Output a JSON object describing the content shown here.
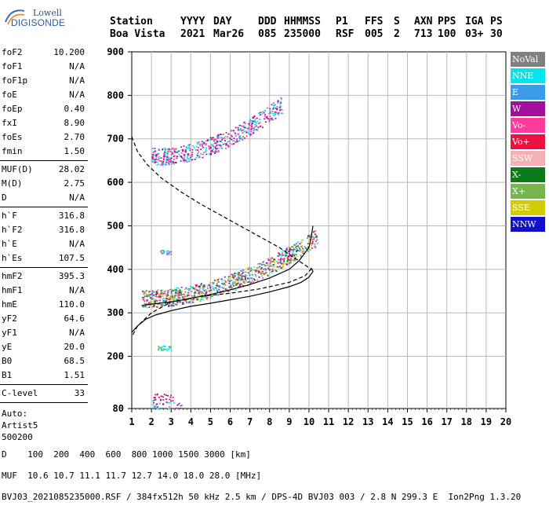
{
  "logo": {
    "line1": "Lowell",
    "line2": "DIGISONDE"
  },
  "header": {
    "row1": [
      "Station",
      "YYYY",
      "DAY",
      "DDD",
      "HHMMSS",
      "P1",
      "FFS",
      "S",
      "AXN",
      "PPS",
      "IGA",
      "PS"
    ],
    "row2": [
      "Boa Vista",
      "2021",
      "Mar26",
      "085",
      "235000",
      "RSF",
      "005",
      "2",
      "713",
      "100",
      "03+",
      "30"
    ]
  },
  "parameters": {
    "group1": [
      {
        "name": "foF2",
        "value": "10.200"
      },
      {
        "name": "foF1",
        "value": "N/A"
      },
      {
        "name": "foF1p",
        "value": "N/A"
      },
      {
        "name": "foE",
        "value": "N/A"
      },
      {
        "name": "foEp",
        "value": "0.40"
      },
      {
        "name": "fxI",
        "value": "8.90"
      },
      {
        "name": "foEs",
        "value": "2.70"
      },
      {
        "name": "fmin",
        "value": "1.50"
      }
    ],
    "group2": [
      {
        "name": "MUF(D)",
        "value": "28.02"
      },
      {
        "name": "M(D)",
        "value": "2.75"
      },
      {
        "name": "D",
        "value": "N/A"
      }
    ],
    "group3": [
      {
        "name": "h`F",
        "value": "316.8"
      },
      {
        "name": "h`F2",
        "value": "316.8"
      },
      {
        "name": "h`E",
        "value": "N/A"
      },
      {
        "name": "h`Es",
        "value": "107.5"
      }
    ],
    "group4": [
      {
        "name": "hmF2",
        "value": "395.3"
      },
      {
        "name": "hmF1",
        "value": "N/A"
      },
      {
        "name": "hmE",
        "value": "110.0"
      },
      {
        "name": "yF2",
        "value": "64.6"
      },
      {
        "name": "yF1",
        "value": "N/A"
      },
      {
        "name": "yE",
        "value": "20.0"
      },
      {
        "name": "B0",
        "value": "68.5"
      },
      {
        "name": "B1",
        "value": "1.51"
      }
    ],
    "group5": [
      {
        "name": "C-level",
        "value": "33"
      }
    ],
    "auto": [
      "Auto:",
      "Artist5",
      "500200"
    ]
  },
  "legend": [
    {
      "label": "NoVal",
      "color": "#808080"
    },
    {
      "label": "NNE",
      "color": "#00e5ee"
    },
    {
      "label": "E",
      "color": "#3c9be8"
    },
    {
      "label": "W",
      "color": "#a0109c"
    },
    {
      "label": "Vo-",
      "color": "#ff3c9c"
    },
    {
      "label": "Vo+",
      "color": "#ee1040"
    },
    {
      "label": "SSW",
      "color": "#f4b0b4"
    },
    {
      "label": "X-",
      "color": "#0a7a1a"
    },
    {
      "label": "X+",
      "color": "#78b450"
    },
    {
      "label": "SSE",
      "color": "#d4cc00"
    },
    {
      "label": "NNW",
      "color": "#1010c8"
    }
  ],
  "chart_data": {
    "type": "scatter",
    "xlabel": "",
    "ylabel": "",
    "xlim": [
      1,
      20
    ],
    "ylim": [
      80,
      900
    ],
    "x_ticks": [
      1,
      2,
      3,
      4,
      5,
      6,
      7,
      8,
      9,
      10,
      11,
      12,
      13,
      14,
      15,
      16,
      17,
      18,
      19,
      20
    ],
    "y_ticks": [
      80,
      200,
      300,
      400,
      500,
      600,
      700,
      800,
      900
    ],
    "grid": true,
    "legend_position": "right",
    "series": [
      {
        "type": "line",
        "style": "solid",
        "x": [
          1.5,
          2.0,
          3.0,
          4.0,
          5.0,
          6.0,
          7.0,
          8.0,
          9.0,
          9.5,
          10.0,
          10.1,
          10.2
        ],
        "y": [
          317,
          320,
          325,
          333,
          342,
          353,
          365,
          380,
          400,
          420,
          450,
          470,
          500
        ]
      },
      {
        "type": "line",
        "style": "solid",
        "x": [
          1.0,
          1.3,
          1.7,
          2.2,
          3.0,
          4.0,
          5.0,
          6.0,
          7.0,
          8.0,
          9.0,
          9.6,
          10.0,
          10.2,
          10.15,
          10.1
        ],
        "y": [
          255,
          270,
          285,
          295,
          305,
          315,
          322,
          330,
          338,
          348,
          360,
          370,
          382,
          395,
          401,
          403
        ]
      },
      {
        "type": "line",
        "style": "dashed",
        "x": [
          1.0,
          1.3,
          1.8,
          2.5,
          3.5,
          4.5,
          5.5,
          6.5,
          7.5,
          8.5,
          9.3,
          9.8,
          10.1,
          9.8,
          9.0,
          7.5,
          6.0,
          4.5,
          3.0,
          2.0,
          1.3,
          1.0
        ],
        "y": [
          705,
          670,
          640,
          610,
          578,
          550,
          525,
          500,
          475,
          450,
          425,
          410,
          400,
          385,
          370,
          355,
          345,
          338,
          325,
          300,
          270,
          245
        ]
      }
    ],
    "clusters": [
      {
        "x": [
          2.0,
          8.6
        ],
        "y": [
          640,
          800
        ],
        "colors": [
          "#a0109c",
          "#ff3c9c",
          "#00e5ee"
        ]
      },
      {
        "x": [
          1.5,
          10.4
        ],
        "y": [
          310,
          500
        ],
        "colors": [
          "#a0109c",
          "#ff3c9c",
          "#ee1040",
          "#0a7a1a",
          "#78b450",
          "#00e5ee",
          "#3c9be8",
          "#d4cc00"
        ]
      },
      {
        "x": [
          2.0,
          3.2
        ],
        "y": [
          95,
          115
        ],
        "colors": [
          "#ee1040",
          "#a0109c",
          "#00e5ee"
        ]
      },
      {
        "x": [
          2.0,
          3.5
        ],
        "y": [
          80,
          95
        ],
        "colors": [
          "#a0109c",
          "#ff3c9c",
          "#00e5ee"
        ]
      },
      {
        "x": [
          2.3,
          3.0
        ],
        "y": [
          215,
          225
        ],
        "colors": [
          "#78b450",
          "#00e5ee"
        ]
      },
      {
        "x": [
          2.4,
          3.0
        ],
        "y": [
          435,
          445
        ],
        "colors": [
          "#ff3c9c",
          "#00e5ee"
        ]
      }
    ]
  },
  "footer": {
    "d_row": "D    100  200  400  600  800 1000 1500 3000 [km]",
    "muf_row": "MUF  10.6 10.7 11.1 11.7 12.7 14.0 18.0 28.0 [MHz]",
    "file_row": "BVJ03_2021085235000.RSF / 384fx512h 50 kHz 2.5 km / DPS-4D BVJ03 003 / 2.8 N 299.3 E  Ion2Png 1.3.20"
  }
}
